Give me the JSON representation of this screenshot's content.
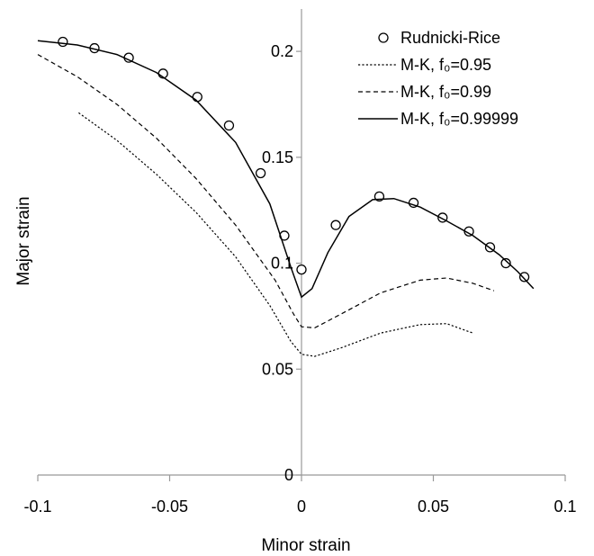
{
  "chart_data": {
    "type": "line",
    "xlabel": "Minor strain",
    "ylabel": "Major strain",
    "xlim": [
      -0.1,
      0.1
    ],
    "ylim": [
      0,
      0.22
    ],
    "x_ticks": [
      -0.1,
      -0.05,
      0,
      0.05,
      0.1
    ],
    "x_tick_labels": [
      "-0.1",
      "-0.05",
      "0",
      "0.05",
      "0.1"
    ],
    "y_ticks": [
      0,
      0.05,
      0.1,
      0.15,
      0.2
    ],
    "y_tick_labels": [
      "0",
      "0.05",
      "0.1",
      "0.15",
      "0.2"
    ],
    "grid": false,
    "legend_position": "top-right",
    "series": [
      {
        "name": "Rudnicki-Rice",
        "style": "markers-circle",
        "points": [
          [
            -0.0905,
            0.2045
          ],
          [
            -0.0785,
            0.2015
          ],
          [
            -0.0655,
            0.197
          ],
          [
            -0.0525,
            0.1895
          ],
          [
            -0.0395,
            0.1785
          ],
          [
            -0.0275,
            0.165
          ],
          [
            -0.0155,
            0.1425
          ],
          [
            -0.0065,
            0.113
          ],
          [
            0.0,
            0.097
          ],
          [
            0.013,
            0.118
          ],
          [
            0.0295,
            0.1315
          ],
          [
            0.0425,
            0.1285
          ],
          [
            0.0535,
            0.1215
          ],
          [
            0.0635,
            0.115
          ],
          [
            0.0715,
            0.1075
          ],
          [
            0.0775,
            0.1
          ],
          [
            0.0845,
            0.0935
          ]
        ]
      },
      {
        "name": "M-K, f₀=0.95",
        "style": "dotted",
        "points": [
          [
            -0.0845,
            0.171
          ],
          [
            -0.07,
            0.158
          ],
          [
            -0.055,
            0.142
          ],
          [
            -0.04,
            0.124
          ],
          [
            -0.025,
            0.103
          ],
          [
            -0.012,
            0.08
          ],
          [
            -0.004,
            0.063
          ],
          [
            0.0,
            0.057
          ],
          [
            0.005,
            0.056
          ],
          [
            0.015,
            0.06
          ],
          [
            0.03,
            0.067
          ],
          [
            0.045,
            0.071
          ],
          [
            0.055,
            0.0715
          ],
          [
            0.065,
            0.067
          ]
        ]
      },
      {
        "name": "M-K, f₀=0.99",
        "style": "dashed",
        "points": [
          [
            -0.1,
            0.1985
          ],
          [
            -0.085,
            0.188
          ],
          [
            -0.07,
            0.175
          ],
          [
            -0.055,
            0.159
          ],
          [
            -0.04,
            0.14
          ],
          [
            -0.025,
            0.118
          ],
          [
            -0.01,
            0.092
          ],
          [
            -0.003,
            0.076
          ],
          [
            0.0,
            0.07
          ],
          [
            0.005,
            0.0695
          ],
          [
            0.015,
            0.076
          ],
          [
            0.03,
            0.086
          ],
          [
            0.045,
            0.092
          ],
          [
            0.055,
            0.093
          ],
          [
            0.065,
            0.0905
          ],
          [
            0.073,
            0.087
          ]
        ]
      },
      {
        "name": "M-K, f₀=0.99999",
        "style": "solid",
        "points": [
          [
            -0.1,
            0.205
          ],
          [
            -0.085,
            0.203
          ],
          [
            -0.07,
            0.1985
          ],
          [
            -0.055,
            0.19
          ],
          [
            -0.04,
            0.177
          ],
          [
            -0.025,
            0.157
          ],
          [
            -0.012,
            0.128
          ],
          [
            -0.004,
            0.098
          ],
          [
            0.0,
            0.084
          ],
          [
            0.004,
            0.088
          ],
          [
            0.01,
            0.105
          ],
          [
            0.018,
            0.122
          ],
          [
            0.027,
            0.13
          ],
          [
            0.035,
            0.1305
          ],
          [
            0.045,
            0.1265
          ],
          [
            0.055,
            0.12
          ],
          [
            0.065,
            0.113
          ],
          [
            0.075,
            0.104
          ],
          [
            0.082,
            0.096
          ],
          [
            0.088,
            0.088
          ]
        ]
      }
    ]
  }
}
